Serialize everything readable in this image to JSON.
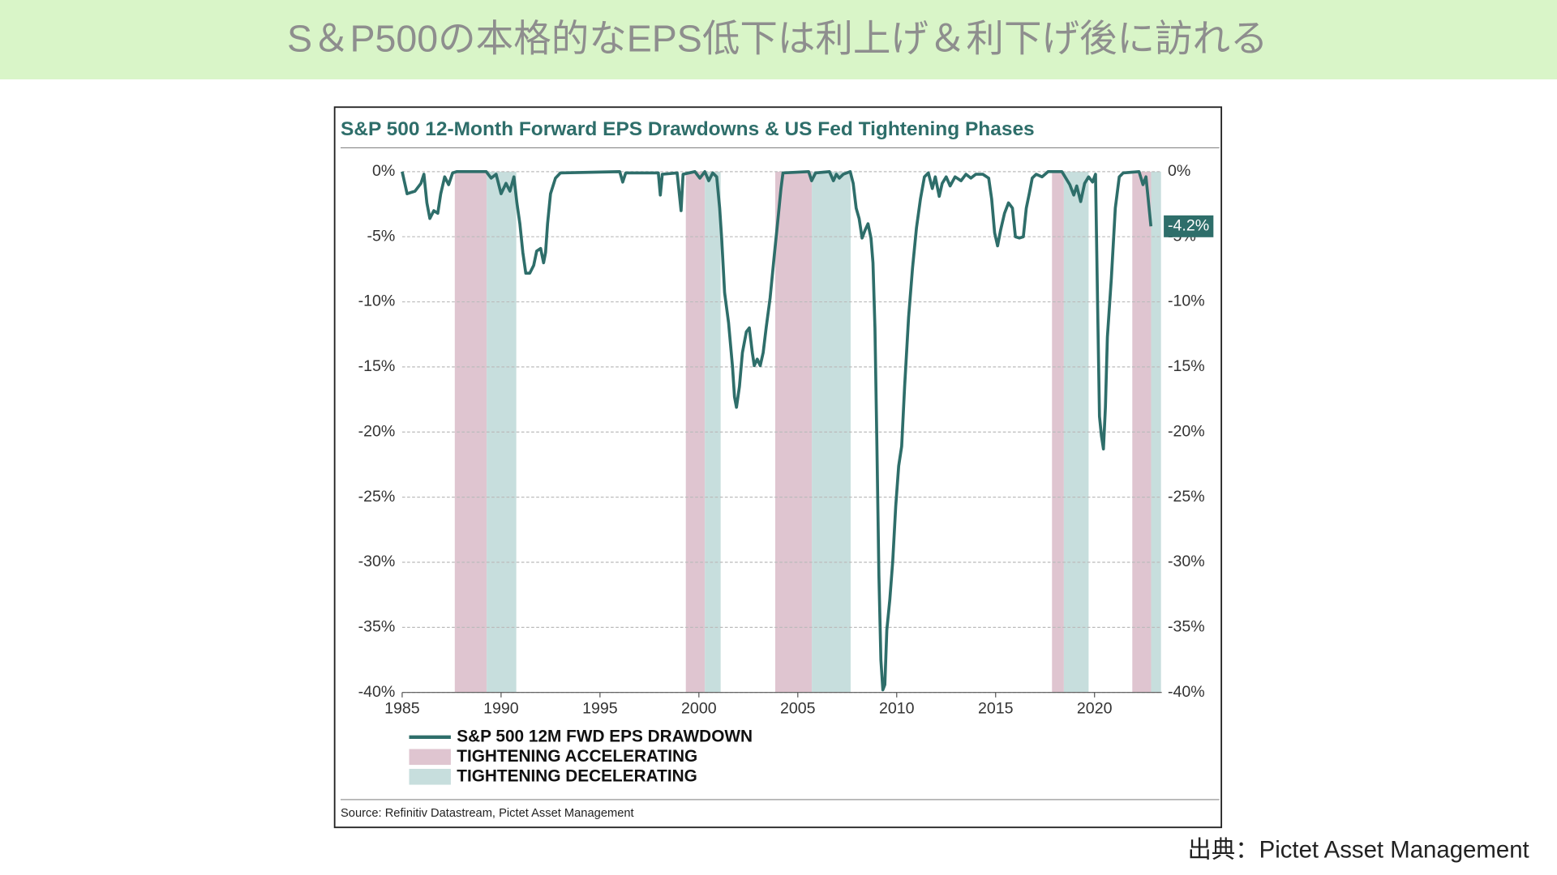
{
  "header": {
    "title": "S＆P500の本格的なEPS低下は利上げ＆利下げ後に訪れる"
  },
  "footer": "出典：Pictet Asset Management",
  "chart_data": {
    "type": "line",
    "title": "S&P 500 12-Month Forward EPS Drawdowns & US Fed Tightening Phases",
    "source": "Source: Refinitiv Datastream, Pictet Asset Management",
    "x": [
      1985.0,
      1985.25,
      1985.65,
      1985.95,
      1986.1,
      1986.25,
      1986.4,
      1986.6,
      1986.8,
      1986.95,
      1987.15,
      1987.35,
      1987.55,
      1987.75,
      1989.25,
      1989.5,
      1989.75,
      1990.0,
      1990.25,
      1990.45,
      1990.65,
      1990.8,
      1990.95,
      1991.1,
      1991.25,
      1991.45,
      1991.65,
      1991.8,
      1992.0,
      1992.15,
      1992.25,
      1992.35,
      1992.5,
      1992.75,
      1993.0,
      1996.0,
      1996.15,
      1996.3,
      1997.95,
      1998.05,
      1998.15,
      1998.9,
      1999.1,
      1999.2,
      1999.8,
      2000.05,
      2000.3,
      2000.5,
      2000.7,
      2000.9,
      2001.05,
      2001.15,
      2001.3,
      2001.5,
      2001.7,
      2001.8,
      2001.9,
      2002.05,
      2002.2,
      2002.4,
      2002.55,
      2002.7,
      2002.8,
      2002.95,
      2003.1,
      2003.25,
      2003.4,
      2003.6,
      2003.8,
      2004.0,
      2004.15,
      2004.25,
      2005.55,
      2005.7,
      2005.9,
      2006.6,
      2006.8,
      2006.95,
      2007.1,
      2007.3,
      2007.65,
      2007.8,
      2007.95,
      2008.1,
      2008.25,
      2008.4,
      2008.55,
      2008.7,
      2008.8,
      2008.9,
      2009.0,
      2009.1,
      2009.2,
      2009.3,
      2009.4,
      2009.5,
      2009.65,
      2009.8,
      2009.95,
      2010.1,
      2010.25,
      2010.4,
      2010.6,
      2010.8,
      2011.0,
      2011.2,
      2011.4,
      2011.6,
      2011.8,
      2011.95,
      2012.15,
      2012.3,
      2012.5,
      2012.7,
      2012.95,
      2013.25,
      2013.5,
      2013.75,
      2014.0,
      2014.35,
      2014.65,
      2014.8,
      2014.95,
      2015.1,
      2015.25,
      2015.45,
      2015.65,
      2015.85,
      2016.0,
      2016.2,
      2016.4,
      2016.55,
      2016.7,
      2016.85,
      2017.05,
      2017.35,
      2017.65,
      2018.35,
      2018.55,
      2018.75,
      2018.95,
      2019.1,
      2019.3,
      2019.5,
      2019.7,
      2019.9,
      2020.05,
      2020.15,
      2020.25,
      2020.35,
      2020.45,
      2020.55,
      2020.65,
      2020.85,
      2021.05,
      2021.25,
      2021.45,
      2022.25,
      2022.45,
      2022.6,
      2022.7,
      2022.85
    ],
    "series": [
      {
        "name": "S&P 500 12M FWD EPS DRAWDOWN",
        "color": "#2e6e6a",
        "values": [
          0,
          -1.7,
          -1.5,
          -0.9,
          -0.2,
          -2.4,
          -3.6,
          -3.0,
          -3.2,
          -1.7,
          -0.4,
          -1.0,
          -0.1,
          0,
          0,
          -0.5,
          -0.2,
          -1.7,
          -0.9,
          -1.5,
          -0.4,
          -2.4,
          -4.0,
          -6.2,
          -7.8,
          -7.8,
          -7.2,
          -6.1,
          -5.9,
          -7.0,
          -6.2,
          -4.0,
          -1.7,
          -0.5,
          -0.1,
          0,
          -0.8,
          -0.1,
          -0.1,
          -1.8,
          -0.2,
          -0.1,
          -3.0,
          -0.2,
          0,
          -0.5,
          0,
          -0.7,
          -0.1,
          -0.4,
          -2.8,
          -5.1,
          -9.3,
          -11.6,
          -15.0,
          -17.3,
          -18.1,
          -16.5,
          -13.9,
          -12.3,
          -12.0,
          -13.9,
          -14.9,
          -14.4,
          -14.9,
          -13.9,
          -12.0,
          -9.7,
          -6.6,
          -3.6,
          -1.3,
          -0.1,
          0,
          -0.7,
          -0.1,
          0,
          -0.7,
          -0.2,
          -0.5,
          -0.2,
          0,
          -0.9,
          -2.8,
          -3.6,
          -5.1,
          -4.5,
          -4.0,
          -5.1,
          -7.0,
          -12.0,
          -21.1,
          -31.0,
          -37.5,
          -39.8,
          -39.4,
          -35.2,
          -32.9,
          -29.9,
          -25.7,
          -22.6,
          -21.1,
          -16.5,
          -11.2,
          -7.4,
          -4.3,
          -2.1,
          -0.4,
          -0.1,
          -1.3,
          -0.4,
          -1.9,
          -0.9,
          -0.4,
          -1.1,
          -0.4,
          -0.7,
          -0.2,
          -0.5,
          -0.2,
          -0.2,
          -0.5,
          -2.1,
          -4.7,
          -5.7,
          -4.5,
          -3.2,
          -2.4,
          -2.8,
          -5.0,
          -5.1,
          -5.0,
          -2.8,
          -1.7,
          -0.5,
          -0.2,
          -0.4,
          0,
          0,
          -0.5,
          -1.0,
          -1.8,
          -1.1,
          -2.3,
          -0.9,
          -0.4,
          -0.8,
          -0.2,
          -9.7,
          -18.8,
          -20.3,
          -21.3,
          -18.1,
          -12.7,
          -8.2,
          -2.8,
          -0.4,
          -0.1,
          0,
          -1.0,
          -0.4,
          -1.9,
          -4.2
        ]
      }
    ],
    "bands": [
      {
        "name": "TIGHTENING ACCELERATING",
        "color": "#dfc5d0",
        "ranges": [
          [
            1987.66,
            1989.27
          ],
          [
            1999.34,
            2000.3
          ],
          [
            2003.86,
            2005.71
          ],
          [
            2017.85,
            2018.45
          ],
          [
            2021.91,
            2022.86
          ]
        ]
      },
      {
        "name": "TIGHTENING DECELERATING",
        "color": "#c7dedd",
        "ranges": [
          [
            1989.27,
            1990.77
          ],
          [
            2000.3,
            2001.1
          ],
          [
            2005.71,
            2007.67
          ],
          [
            2018.45,
            2019.7
          ],
          [
            2022.86,
            2023.36
          ]
        ]
      }
    ],
    "annotations": [
      {
        "value": -4.2,
        "label": "-4.2%"
      }
    ],
    "xlim": [
      1985,
      2023.4
    ],
    "xticks": [
      1985,
      1990,
      1995,
      2000,
      2005,
      2010,
      2015,
      2020
    ],
    "ylim": [
      -40,
      0
    ],
    "yticks": [
      {
        "value": 0,
        "label": "0%"
      },
      {
        "value": -5,
        "label": "-5%"
      },
      {
        "value": -10,
        "label": "-10%"
      },
      {
        "value": -15,
        "label": "-15%"
      },
      {
        "value": -20,
        "label": "-20%"
      },
      {
        "value": -25,
        "label": "-25%"
      },
      {
        "value": -30,
        "label": "-30%"
      },
      {
        "value": -35,
        "label": "-35%"
      },
      {
        "value": -40,
        "label": "-40%"
      }
    ],
    "grid": true
  }
}
